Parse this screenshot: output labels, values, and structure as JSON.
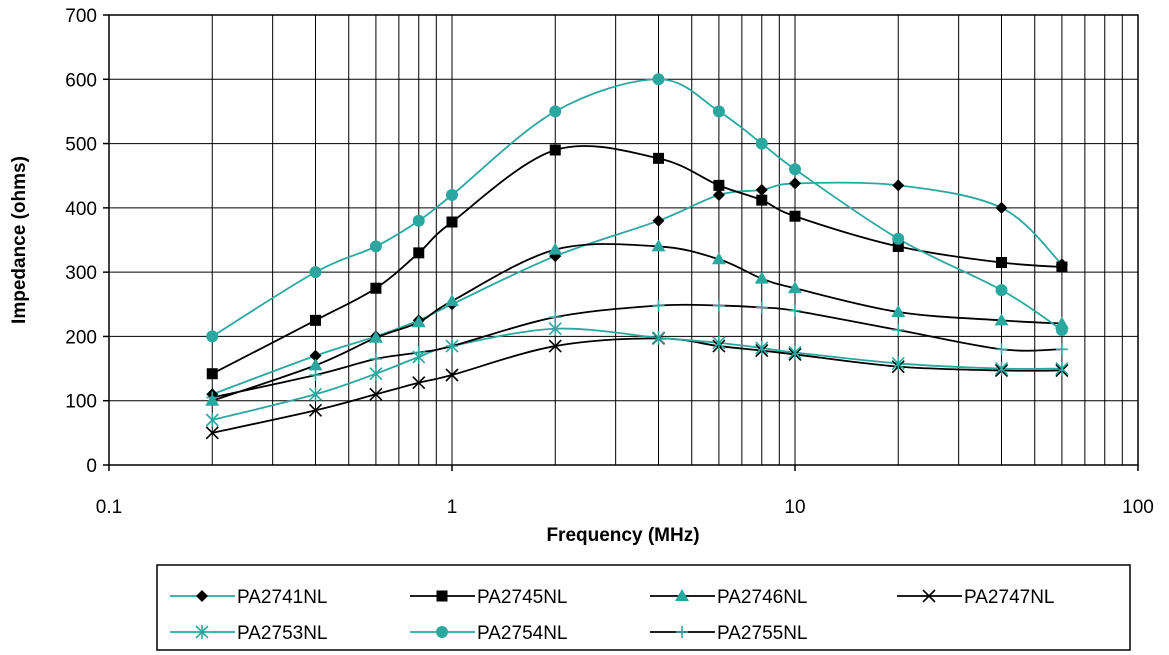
{
  "chart_data": {
    "type": "line",
    "title": "",
    "xlabel": "Frequency (MHz)",
    "ylabel": "Impedance (ohms)",
    "x_scale": "log",
    "xlim": [
      0.1,
      100
    ],
    "ylim": [
      0,
      700
    ],
    "x_ticks": [
      0.1,
      1,
      10,
      100
    ],
    "x_tick_labels": [
      "0.1",
      "1",
      "10",
      "100"
    ],
    "y_ticks": [
      0,
      100,
      200,
      300,
      400,
      500,
      600,
      700
    ],
    "y_tick_labels": [
      "0",
      "100",
      "200",
      "300",
      "400",
      "500",
      "600",
      "700"
    ],
    "grid": true,
    "legend_position": "bottom",
    "x": [
      0.2,
      0.4,
      0.6,
      0.8,
      1,
      2,
      4,
      6,
      8,
      10,
      20,
      40,
      60
    ],
    "series": [
      {
        "name": "PA2741NL",
        "color": "#2aa8a0",
        "marker": "diamond",
        "marker_color": "#000000",
        "values": [
          110,
          170,
          200,
          225,
          250,
          325,
          380,
          420,
          428,
          438,
          435,
          400,
          312
        ]
      },
      {
        "name": "PA2745NL",
        "color": "#000000",
        "marker": "square",
        "marker_color": "#000000",
        "values": [
          142,
          225,
          275,
          330,
          378,
          490,
          477,
          435,
          412,
          387,
          340,
          315,
          308
        ]
      },
      {
        "name": "PA2746NL",
        "color": "#000000",
        "marker": "triangle",
        "marker_color": "#2aa8a0",
        "values": [
          100,
          155,
          198,
          222,
          255,
          335,
          340,
          320,
          290,
          275,
          238,
          225,
          220
        ]
      },
      {
        "name": "PA2747NL",
        "color": "#000000",
        "marker": "x",
        "marker_color": "#000000",
        "values": [
          50,
          85,
          110,
          128,
          140,
          185,
          197,
          185,
          178,
          172,
          153,
          147,
          147
        ]
      },
      {
        "name": "PA2753NL",
        "color": "#2aa8a0",
        "marker": "asterisk",
        "marker_color": "#2aa8a0",
        "values": [
          70,
          110,
          142,
          168,
          185,
          212,
          198,
          190,
          182,
          175,
          158,
          150,
          150
        ]
      },
      {
        "name": "PA2754NL",
        "color": "#2aa8a0",
        "marker": "circle",
        "marker_color": "#2aa8a0",
        "values": [
          200,
          300,
          340,
          380,
          420,
          550,
          600,
          550,
          500,
          460,
          352,
          272,
          210
        ]
      },
      {
        "name": "PA2755NL",
        "color": "#000000",
        "marker": "plus",
        "marker_color": "#2aa8a0",
        "values": [
          105,
          140,
          165,
          175,
          185,
          230,
          248,
          248,
          245,
          240,
          210,
          180,
          180
        ]
      }
    ]
  }
}
